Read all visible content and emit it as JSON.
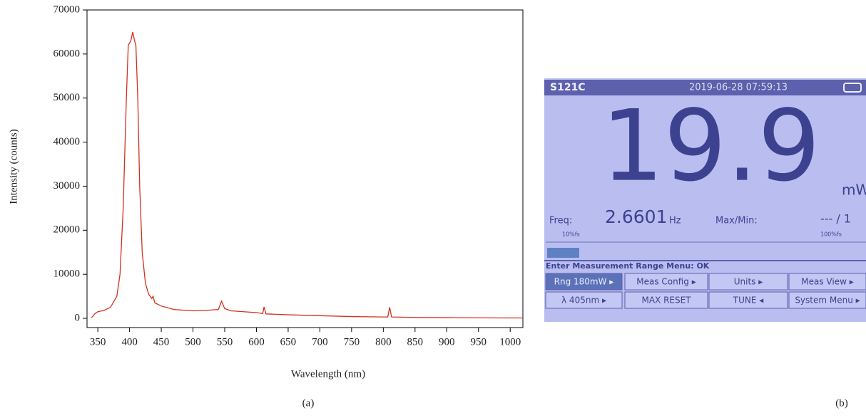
{
  "chart_data": {
    "type": "line",
    "xlabel": "Wavelength (nm)",
    "ylabel": "Intensity (counts)",
    "color": "#d2301e",
    "x": [
      340,
      345,
      350,
      360,
      370,
      380,
      385,
      390,
      395,
      398,
      402,
      405,
      408,
      410,
      413,
      416,
      420,
      425,
      430,
      435,
      437,
      440,
      450,
      470,
      500,
      520,
      540,
      545,
      550,
      560,
      580,
      600,
      610,
      612,
      615,
      650,
      700,
      750,
      800,
      807,
      810,
      813,
      850,
      900,
      950,
      1000,
      1020
    ],
    "values": [
      100,
      1000,
      1500,
      1800,
      2500,
      5000,
      10000,
      25000,
      50000,
      62000,
      63000,
      65000,
      63000,
      62000,
      50000,
      30000,
      15000,
      8000,
      5500,
      4500,
      5000,
      3500,
      2800,
      2000,
      1700,
      1800,
      2000,
      3900,
      2200,
      1700,
      1500,
      1300,
      1100,
      2600,
      1000,
      800,
      600,
      400,
      300,
      300,
      2500,
      300,
      200,
      150,
      100,
      80,
      80
    ],
    "xlim": [
      333,
      1020
    ],
    "ylim": [
      -2100,
      70000
    ],
    "xticks": [
      350,
      400,
      450,
      500,
      550,
      600,
      650,
      700,
      750,
      800,
      850,
      900,
      950,
      1000
    ],
    "yticks": [
      0,
      10000,
      20000,
      30000,
      40000,
      50000,
      60000,
      70000
    ]
  },
  "captions": [
    "(a)",
    "(b)"
  ],
  "screen": {
    "model": "S121C",
    "datetime": "2019-06-28 07:59:13",
    "reading": "19.9",
    "unit": "mW",
    "freq_label": "Freq:",
    "freq_value": "2.6601",
    "freq_unit": "Hz",
    "maxmin_label": "Max/Min:",
    "maxmin_value": "--- / 1",
    "scale_low": "10%fs",
    "scale_high": "100%fs",
    "prompt": "Enter Measurement Range Menu: OK",
    "buttons": [
      "Rng 180mW ▸",
      "Meas Config ▸",
      "Units ▸",
      "Meas View ▸",
      "λ 405nm ▸",
      "MAX RESET",
      "TUNE ◂",
      "System Menu ▸"
    ]
  }
}
